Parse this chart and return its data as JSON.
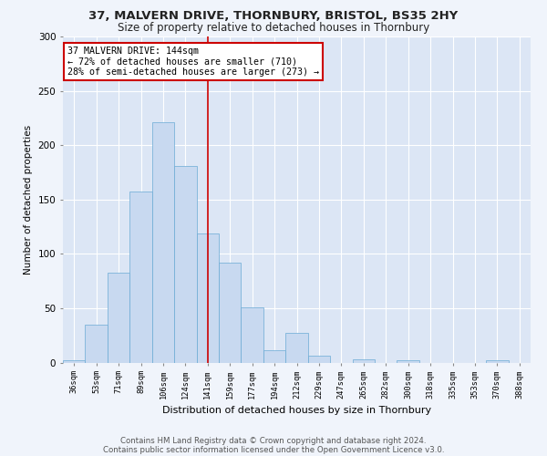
{
  "title": "37, MALVERN DRIVE, THORNBURY, BRISTOL, BS35 2HY",
  "subtitle": "Size of property relative to detached houses in Thornbury",
  "xlabel": "Distribution of detached houses by size in Thornbury",
  "ylabel": "Number of detached properties",
  "categories": [
    "36sqm",
    "53sqm",
    "71sqm",
    "89sqm",
    "106sqm",
    "124sqm",
    "141sqm",
    "159sqm",
    "177sqm",
    "194sqm",
    "212sqm",
    "229sqm",
    "247sqm",
    "265sqm",
    "282sqm",
    "300sqm",
    "318sqm",
    "335sqm",
    "353sqm",
    "370sqm",
    "388sqm"
  ],
  "values": [
    2,
    35,
    83,
    157,
    221,
    181,
    119,
    92,
    51,
    11,
    27,
    6,
    0,
    3,
    0,
    2,
    0,
    0,
    0,
    2,
    0
  ],
  "bar_color": "#c8d9f0",
  "bar_edge_color": "#6aaad4",
  "highlight_index": 6,
  "annotation_line1": "37 MALVERN DRIVE: 144sqm",
  "annotation_line2": "← 72% of detached houses are smaller (710)",
  "annotation_line3": "28% of semi-detached houses are larger (273) →",
  "annotation_box_color": "#ffffff",
  "annotation_box_edge_color": "#cc0000",
  "ylim": [
    0,
    300
  ],
  "yticks": [
    0,
    50,
    100,
    150,
    200,
    250,
    300
  ],
  "plot_bg_color": "#dce6f5",
  "grid_color": "#ffffff",
  "fig_bg_color": "#f0f4fb",
  "footer_line1": "Contains HM Land Registry data © Crown copyright and database right 2024.",
  "footer_line2": "Contains public sector information licensed under the Open Government Licence v3.0.",
  "red_line_color": "#cc0000",
  "title_fontsize": 9.5,
  "subtitle_fontsize": 8.5
}
